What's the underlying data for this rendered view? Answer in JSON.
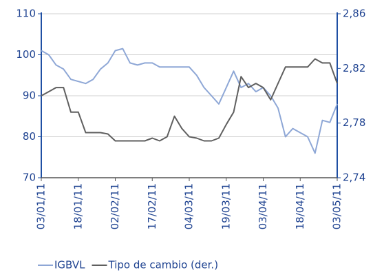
{
  "chart_data": {
    "type": "line",
    "categories": [
      "03/01/11",
      null,
      null,
      null,
      null,
      "18/01/11",
      null,
      null,
      null,
      null,
      "02/02/11",
      null,
      null,
      null,
      null,
      "17/02/11",
      null,
      null,
      null,
      null,
      "04/03/11",
      null,
      null,
      null,
      null,
      "19/03/11",
      null,
      null,
      null,
      null,
      "03/04/11",
      null,
      null,
      null,
      null,
      "18/04/11",
      null,
      null,
      null,
      null,
      "03/05/11"
    ],
    "series": [
      {
        "name": "IGBVL",
        "color": "#8ea7d6",
        "axis": "y",
        "values": [
          101,
          100,
          97.5,
          96.5,
          94,
          93.5,
          93,
          94,
          96.5,
          98,
          101,
          101.5,
          98,
          97.5,
          98,
          98,
          97,
          97,
          97,
          97,
          97,
          95,
          92,
          90,
          88,
          92,
          96,
          92,
          93,
          91,
          92,
          90,
          87,
          80,
          82,
          81,
          80,
          76,
          84,
          83.5,
          88
        ]
      },
      {
        "name": "Tipo de cambio (der.)",
        "color": "#5f5f5f",
        "axis": "y2",
        "values": [
          2.8,
          2.803,
          2.806,
          2.806,
          2.788,
          2.788,
          2.773,
          2.773,
          2.773,
          2.772,
          2.767,
          2.767,
          2.767,
          2.767,
          2.767,
          2.769,
          2.767,
          2.77,
          2.785,
          2.776,
          2.77,
          2.769,
          2.767,
          2.767,
          2.769,
          2.779,
          2.788,
          2.814,
          2.806,
          2.809,
          2.806,
          2.797,
          2.809,
          2.821,
          2.821,
          2.821,
          2.821,
          2.827,
          2.824,
          2.824,
          2.809
        ]
      }
    ],
    "ylim": [
      70,
      110
    ],
    "yticks": [
      70,
      80,
      90,
      100,
      110
    ],
    "y2lim": [
      2.74,
      2.86
    ],
    "y2ticks": [
      {
        "value": 2.74,
        "label": "2,74"
      },
      {
        "value": 2.78,
        "label": "2,78"
      },
      {
        "value": 2.82,
        "label": "2,82"
      },
      {
        "value": 2.86,
        "label": "2,86"
      }
    ],
    "grid": true
  }
}
